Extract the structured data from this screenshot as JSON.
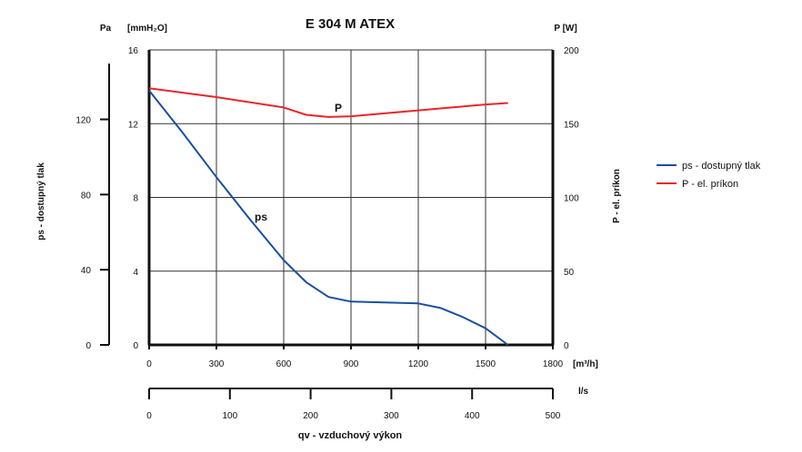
{
  "chart_data": {
    "type": "line",
    "title": "E 304 M ATEX",
    "xlabel": "qv - vzduchový výkon",
    "x_unit": "[m³/h]",
    "x2_unit": "l/s",
    "ylabel_left": "ps - dostupný tlak",
    "y_unit_pa": "Pa",
    "y_unit_mm": "[mmH₂O]",
    "ylabel_right": "P - el. príkon",
    "y_unit_right": "P [W]",
    "xlim": [
      0,
      1800
    ],
    "x_ticks": [
      0,
      300,
      600,
      900,
      1200,
      1500,
      1800
    ],
    "x2lim": [
      0,
      500
    ],
    "x2_ticks": [
      0,
      100,
      200,
      300,
      400,
      500
    ],
    "ylim_mm": [
      0,
      16
    ],
    "y_mm_ticks": [
      0,
      4,
      8,
      12,
      16
    ],
    "y_pa_ticks": [
      0,
      40,
      80,
      120
    ],
    "ylim_right": [
      0,
      200
    ],
    "y_right_ticks": [
      0,
      50,
      100,
      150,
      200
    ],
    "grid": true,
    "legend_position": "right",
    "series": [
      {
        "name": "ps - dostupný tlak",
        "label": "ps",
        "color": "#1a4fa0",
        "axis": "mmH2O",
        "x": [
          0,
          150,
          300,
          450,
          600,
          700,
          800,
          900,
          1050,
          1200,
          1300,
          1400,
          1500,
          1600
        ],
        "y": [
          13.8,
          11.5,
          9.1,
          6.8,
          4.6,
          3.4,
          2.6,
          2.35,
          2.3,
          2.25,
          2.0,
          1.5,
          0.9,
          0
        ]
      },
      {
        "name": "P - el. príkon",
        "label": "P",
        "color": "#e8262b",
        "axis": "W",
        "x": [
          0,
          300,
          600,
          700,
          800,
          900,
          1050,
          1200,
          1350,
          1500,
          1600
        ],
        "y": [
          174,
          168,
          161,
          156,
          154.5,
          155,
          157,
          159,
          161,
          163,
          164
        ]
      }
    ]
  }
}
